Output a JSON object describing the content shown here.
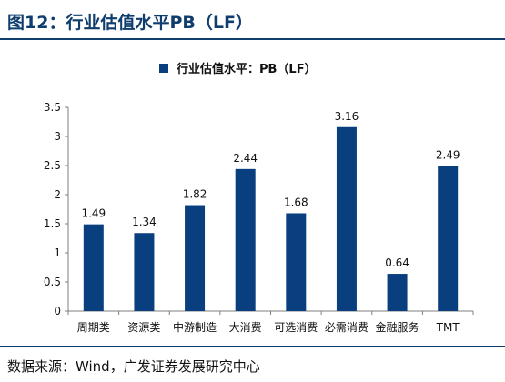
{
  "figure": {
    "title": "图12：行业估值水平PB（LF）",
    "source": "数据来源：Wind，广发证券发展研究中心"
  },
  "colors": {
    "bar": "#0a3f7f",
    "title": "#0f3d6e",
    "axis": "#7f7f7f"
  },
  "chart_data": {
    "type": "bar",
    "categories": [
      "周期类",
      "资源类",
      "中游制造",
      "大消费",
      "可选消费",
      "必需消费",
      "金融服务",
      "TMT"
    ],
    "series": [
      {
        "name": "行业估值水平：PB（LF）",
        "values": [
          1.49,
          1.34,
          1.82,
          2.44,
          1.68,
          3.16,
          0.64,
          2.49
        ]
      }
    ],
    "data_labels": [
      "1.49",
      "1.34",
      "1.82",
      "2.44",
      "1.68",
      "3.16",
      "0.64",
      "2.49"
    ],
    "y_ticks": [
      "0",
      "0.5",
      "1",
      "1.5",
      "2",
      "2.5",
      "3",
      "3.5"
    ],
    "ylim": [
      0,
      3.5
    ],
    "grid": false,
    "legend": "top-center"
  }
}
